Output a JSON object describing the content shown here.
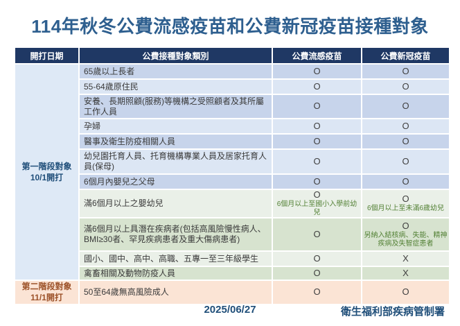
{
  "title": "114年秋冬公費流感疫苗和公費新冠疫苗接種對象",
  "table": {
    "headers": [
      "開打日期",
      "公費接種對象類別",
      "公費流感疫苗",
      "公費新冠疫苗"
    ],
    "phases": [
      {
        "label": "第一階段對象",
        "date": "10/1開打"
      },
      {
        "label": "第二階段對象",
        "date": "11/1開打"
      }
    ],
    "rows": [
      {
        "category": "65歲以上長者",
        "flu": "O",
        "covid": "O"
      },
      {
        "category": "55-64歲原住民",
        "flu": "O",
        "covid": "O"
      },
      {
        "category": "安養、長期照顧(服務)等機構之受照顧者及其所屬工作人員",
        "flu": "O",
        "covid": "O"
      },
      {
        "category": "孕婦",
        "flu": "O",
        "covid": "O"
      },
      {
        "category": "醫事及衛生防疫相關人員",
        "flu": "O",
        "covid": "O"
      },
      {
        "category": "幼兒園托育人員、托育機構專業人員及居家托育人員(保母)",
        "flu": "O",
        "covid": "O"
      },
      {
        "category": "6個月內嬰兒之父母",
        "flu": "O",
        "covid": "O"
      },
      {
        "category": "滿6個月以上之嬰幼兒",
        "flu": "O",
        "flu_note": "6個月以上至國小入學前幼兒",
        "covid": "O",
        "covid_note": "6個月以上至未滿6歲幼兒"
      },
      {
        "category": "滿6個月以上具潛在疾病者(包括高風險慢性病人、BMI≥30者、罕見疾病患者及重大傷病患者)",
        "flu": "O",
        "covid": "O",
        "covid_note": "另納入結核病、失能、精神疾病及失智症患者"
      },
      {
        "category": "國小、國中、高中、高職、五專一至三年級學生",
        "flu": "O",
        "covid": "X"
      },
      {
        "category": "禽畜相關及動物防疫人員",
        "flu": "O",
        "covid": "X"
      },
      {
        "category": "50至64歲無高風險成人",
        "flu": "O",
        "covid": "O"
      }
    ]
  },
  "footer": {
    "date": "2025/06/27",
    "agency": "衛生福利部疾病管制署"
  },
  "colors": {
    "header_bg": "#1F3864",
    "header_text": "#FFFFFF",
    "title_text": "#2E5F8F",
    "row_blue_dark": "#C7D4EB",
    "row_blue_light": "#DCE6F4",
    "row_green_dark": "#D7E3CF",
    "row_green_light": "#EAF0E8",
    "row_peach": "#FBE4D5",
    "phase1_bg": "#DEE9F6",
    "phase1_text": "#1F4E79",
    "phase2_text": "#9C5229",
    "mark_text": "#3F3F3F",
    "note_text": "#538135",
    "footer_text": "#1F4E79"
  }
}
